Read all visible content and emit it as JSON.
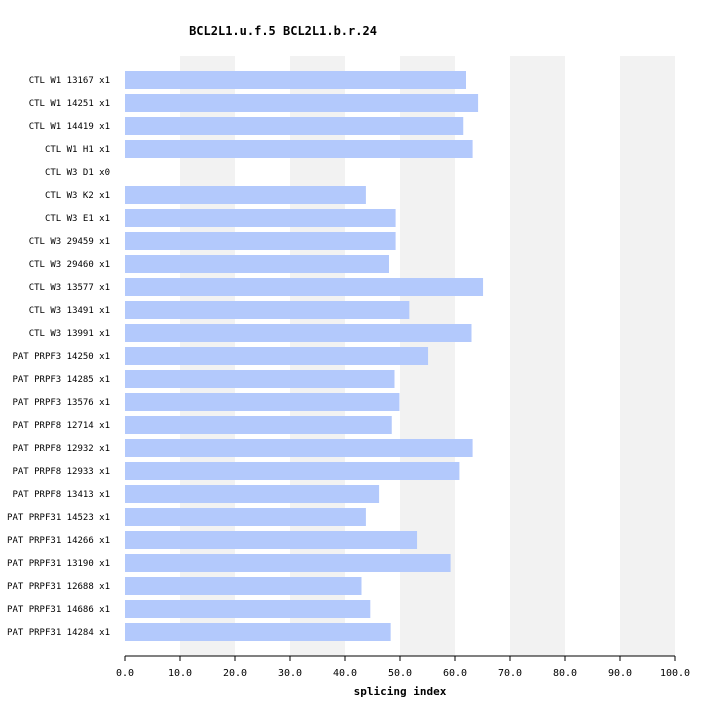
{
  "chart_data": {
    "type": "bar",
    "orientation": "horizontal",
    "title": "BCL2L1.u.f.5  BCL2L1.b.r.24",
    "xlabel": "splicing index",
    "xlim": [
      0,
      100
    ],
    "xticks": [
      "0.0",
      "10.0",
      "20.0",
      "30.0",
      "40.0",
      "50.0",
      "60.0",
      "70.0",
      "80.0",
      "90.0",
      "100.0"
    ],
    "grid": "alternating vertical bands",
    "colors": {
      "bar": "#b3c9fc",
      "band": "#f2f2f2",
      "axis": "#000000"
    },
    "categories": [
      "CTL W1 13167 x1",
      "CTL W1 14251 x1",
      "CTL W1 14419 x1",
      "CTL W1 H1 x1",
      "CTL W3 D1 x0",
      "CTL W3 K2 x1",
      "CTL W3 E1 x1",
      "CTL W3 29459 x1",
      "CTL W3 29460 x1",
      "CTL W3 13577 x1",
      "CTL W3 13491 x1",
      "CTL W3 13991 x1",
      "PAT PRPF3 14250 x1",
      "PAT PRPF3 14285 x1",
      "PAT PRPF3 13576 x1",
      "PAT PRPF8 12714 x1",
      "PAT PRPF8 12932 x1",
      "PAT PRPF8 12933 x1",
      "PAT PRPF8 13413 x1",
      "PAT PRPF31 14523 x1",
      "PAT PRPF31 14266 x1",
      "PAT PRPF31 13190 x1",
      "PAT PRPF31 12688 x1",
      "PAT PRPF31 14686 x1",
      "PAT PRPF31 14284 x1"
    ],
    "values": [
      62.0,
      64.2,
      61.5,
      63.2,
      null,
      43.8,
      49.2,
      49.2,
      48.0,
      65.1,
      51.7,
      63.0,
      55.1,
      49.0,
      49.9,
      48.5,
      63.2,
      60.8,
      46.2,
      43.8,
      53.1,
      59.2,
      43.0,
      44.6,
      48.3
    ]
  }
}
